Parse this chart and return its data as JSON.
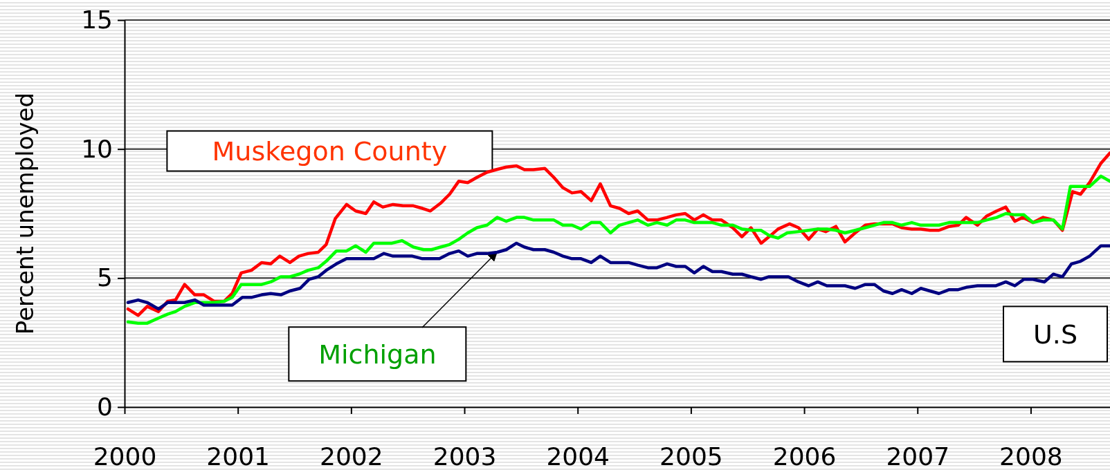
{
  "chart_data": {
    "type": "line",
    "ylabel": "Percent unemployed",
    "xlim": [
      2000,
      2008.7
    ],
    "xticks": [
      2000,
      2001,
      2002,
      2003,
      2004,
      2005,
      2006,
      2007,
      2008
    ],
    "ylim": [
      0,
      15
    ],
    "yticks": [
      0,
      5,
      10,
      15
    ],
    "grid": "y",
    "line_style": "solid",
    "marker": "none",
    "series": [
      {
        "name": "Muskegon County",
        "color": "#ff0000",
        "x": [
          2000.03,
          2000.12,
          2000.2,
          2000.3,
          2000.38,
          2000.45,
          2000.53,
          2000.62,
          2000.7,
          2000.79,
          2000.88,
          2000.95,
          2001.03,
          2001.12,
          2001.21,
          2001.29,
          2001.37,
          2001.46,
          2001.54,
          2001.62,
          2001.71,
          2001.78,
          2001.86,
          2001.96,
          2002.04,
          2002.13,
          2002.2,
          2002.28,
          2002.37,
          2002.46,
          2002.55,
          2002.63,
          2002.7,
          2002.79,
          2002.87,
          2002.95,
          2003.03,
          2003.11,
          2003.2,
          2003.28,
          2003.37,
          2003.46,
          2003.53,
          2003.61,
          2003.71,
          2003.79,
          2003.87,
          2003.95,
          2004.03,
          2004.12,
          2004.2,
          2004.29,
          2004.37,
          2004.45,
          2004.53,
          2004.62,
          2004.7,
          2004.79,
          2004.87,
          2004.95,
          2005.03,
          2005.11,
          2005.19,
          2005.27,
          2005.37,
          2005.45,
          2005.53,
          2005.62,
          2005.69,
          2005.77,
          2005.87,
          2005.95,
          2006.04,
          2006.12,
          2006.19,
          2006.28,
          2006.36,
          2006.45,
          2006.54,
          2006.62,
          2006.78,
          2006.86,
          2006.95,
          2007.03,
          2007.11,
          2007.19,
          2007.28,
          2007.36,
          2007.43,
          2007.53,
          2007.61,
          2007.7,
          2007.78,
          2007.86,
          2007.93,
          2008.02,
          2008.11,
          2008.2,
          2008.28,
          2008.37,
          2008.44,
          2008.52,
          2008.62,
          2008.7
        ],
        "values": [
          3.8,
          3.55,
          3.9,
          3.7,
          4.1,
          4.15,
          4.75,
          4.35,
          4.35,
          4.1,
          4.1,
          4.4,
          5.2,
          5.3,
          5.6,
          5.55,
          5.85,
          5.6,
          5.85,
          5.95,
          6.0,
          6.3,
          7.3,
          7.85,
          7.6,
          7.5,
          7.95,
          7.75,
          7.85,
          7.8,
          7.8,
          7.7,
          7.6,
          7.9,
          8.25,
          8.75,
          8.7,
          8.9,
          9.1,
          9.2,
          9.3,
          9.35,
          9.2,
          9.2,
          9.25,
          8.9,
          8.5,
          8.3,
          8.35,
          8.0,
          8.65,
          7.8,
          7.7,
          7.5,
          7.6,
          7.25,
          7.25,
          7.35,
          7.45,
          7.5,
          7.25,
          7.45,
          7.25,
          7.25,
          6.95,
          6.6,
          6.95,
          6.35,
          6.6,
          6.9,
          7.1,
          6.95,
          6.5,
          6.9,
          6.8,
          7.0,
          6.4,
          6.75,
          7.05,
          7.1,
          7.1,
          6.95,
          6.9,
          6.9,
          6.85,
          6.85,
          7.0,
          7.05,
          7.35,
          7.05,
          7.4,
          7.6,
          7.75,
          7.2,
          7.35,
          7.15,
          7.35,
          7.25,
          6.85,
          8.35,
          8.25,
          8.7,
          9.45,
          9.85
        ]
      },
      {
        "name": "Michigan",
        "color": "#00ff00",
        "x": [
          2000.03,
          2000.12,
          2000.2,
          2000.3,
          2000.38,
          2000.45,
          2000.53,
          2000.62,
          2000.7,
          2000.79,
          2000.88,
          2000.95,
          2001.03,
          2001.12,
          2001.21,
          2001.29,
          2001.38,
          2001.46,
          2001.54,
          2001.62,
          2001.71,
          2001.78,
          2001.87,
          2001.96,
          2002.04,
          2002.13,
          2002.2,
          2002.36,
          2002.45,
          2002.55,
          2002.64,
          2002.71,
          2002.79,
          2002.87,
          2002.95,
          2003.03,
          2003.11,
          2003.2,
          2003.29,
          2003.37,
          2003.46,
          2003.53,
          2003.61,
          2003.79,
          2003.87,
          2003.95,
          2004.03,
          2004.12,
          2004.2,
          2004.29,
          2004.37,
          2004.45,
          2004.53,
          2004.62,
          2004.7,
          2004.79,
          2004.87,
          2004.95,
          2005.03,
          2005.19,
          2005.27,
          2005.37,
          2005.45,
          2005.54,
          2005.62,
          2005.69,
          2005.77,
          2005.85,
          2005.95,
          2006.04,
          2006.12,
          2006.2,
          2006.28,
          2006.36,
          2006.45,
          2006.54,
          2006.62,
          2006.7,
          2006.78,
          2006.86,
          2006.95,
          2007.03,
          2007.19,
          2007.28,
          2007.53,
          2007.61,
          2007.7,
          2007.78,
          2007.86,
          2007.94,
          2008.02,
          2008.11,
          2008.2,
          2008.28,
          2008.35,
          2008.52,
          2008.62,
          2008.7
        ],
        "values": [
          3.3,
          3.25,
          3.25,
          3.45,
          3.6,
          3.7,
          3.9,
          4.05,
          4.05,
          4.05,
          4.1,
          4.25,
          4.75,
          4.75,
          4.75,
          4.85,
          5.05,
          5.05,
          5.15,
          5.3,
          5.4,
          5.65,
          6.05,
          6.05,
          6.25,
          6.0,
          6.35,
          6.35,
          6.45,
          6.2,
          6.1,
          6.1,
          6.2,
          6.3,
          6.5,
          6.75,
          6.95,
          7.05,
          7.35,
          7.2,
          7.35,
          7.35,
          7.25,
          7.25,
          7.05,
          7.05,
          6.9,
          7.15,
          7.15,
          6.75,
          7.05,
          7.15,
          7.25,
          7.05,
          7.15,
          7.05,
          7.25,
          7.25,
          7.15,
          7.15,
          7.05,
          7.05,
          6.9,
          6.85,
          6.85,
          6.65,
          6.55,
          6.75,
          6.8,
          6.85,
          6.9,
          6.9,
          6.85,
          6.75,
          6.85,
          6.95,
          7.05,
          7.15,
          7.15,
          7.05,
          7.15,
          7.05,
          7.05,
          7.15,
          7.15,
          7.25,
          7.35,
          7.5,
          7.45,
          7.45,
          7.15,
          7.25,
          7.25,
          6.9,
          8.55,
          8.55,
          8.95,
          8.75
        ]
      },
      {
        "name": "U.S",
        "color": "#000080",
        "x": [
          2000.03,
          2000.12,
          2000.2,
          2000.3,
          2000.38,
          2000.53,
          2000.62,
          2000.7,
          2000.95,
          2001.04,
          2001.12,
          2001.21,
          2001.29,
          2001.38,
          2001.46,
          2001.55,
          2001.63,
          2001.71,
          2001.78,
          2001.87,
          2001.96,
          2002.2,
          2002.29,
          2002.37,
          2002.54,
          2002.63,
          2002.78,
          2002.87,
          2002.95,
          2003.03,
          2003.11,
          2003.2,
          2003.29,
          2003.37,
          2003.46,
          2003.53,
          2003.61,
          2003.71,
          2003.79,
          2003.87,
          2003.95,
          2004.03,
          2004.12,
          2004.2,
          2004.29,
          2004.45,
          2004.53,
          2004.62,
          2004.7,
          2004.79,
          2004.87,
          2004.95,
          2005.03,
          2005.11,
          2005.19,
          2005.27,
          2005.37,
          2005.45,
          2005.53,
          2005.62,
          2005.69,
          2005.86,
          2005.95,
          2006.04,
          2006.12,
          2006.2,
          2006.36,
          2006.45,
          2006.54,
          2006.62,
          2006.7,
          2006.78,
          2006.86,
          2006.95,
          2007.03,
          2007.11,
          2007.19,
          2007.28,
          2007.36,
          2007.44,
          2007.53,
          2007.69,
          2007.78,
          2007.86,
          2007.94,
          2008.02,
          2008.12,
          2008.2,
          2008.28,
          2008.36,
          2008.44,
          2008.52,
          2008.62,
          2008.7
        ],
        "values": [
          4.05,
          4.15,
          4.05,
          3.8,
          4.05,
          4.05,
          4.15,
          3.95,
          3.95,
          4.25,
          4.25,
          4.35,
          4.4,
          4.35,
          4.5,
          4.6,
          4.95,
          5.05,
          5.3,
          5.55,
          5.75,
          5.75,
          5.95,
          5.85,
          5.85,
          5.75,
          5.75,
          5.95,
          6.05,
          5.85,
          5.95,
          5.95,
          6.0,
          6.1,
          6.35,
          6.2,
          6.1,
          6.1,
          6.0,
          5.85,
          5.75,
          5.75,
          5.6,
          5.85,
          5.6,
          5.6,
          5.5,
          5.4,
          5.4,
          5.55,
          5.45,
          5.45,
          5.2,
          5.45,
          5.25,
          5.25,
          5.15,
          5.15,
          5.05,
          4.95,
          5.05,
          5.05,
          4.85,
          4.7,
          4.85,
          4.7,
          4.7,
          4.6,
          4.75,
          4.75,
          4.5,
          4.4,
          4.55,
          4.4,
          4.6,
          4.5,
          4.4,
          4.55,
          4.55,
          4.65,
          4.7,
          4.7,
          4.85,
          4.7,
          4.95,
          4.95,
          4.85,
          5.15,
          5.05,
          5.55,
          5.65,
          5.85,
          6.25,
          6.25
        ]
      }
    ]
  }
}
